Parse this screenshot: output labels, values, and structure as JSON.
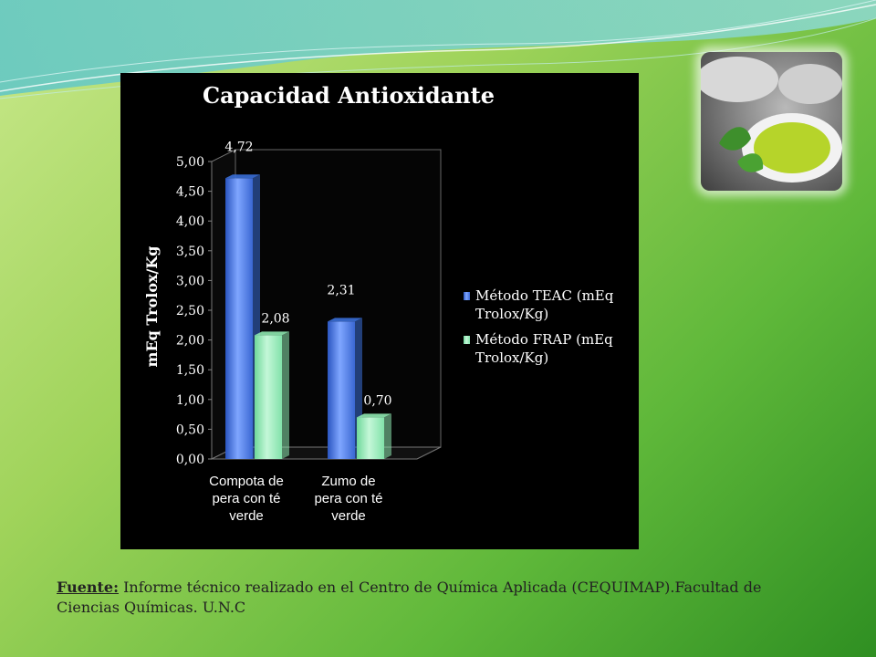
{
  "chart_data": {
    "type": "bar",
    "title": "Capacidad Antioxidante",
    "xlabel": "",
    "ylabel": "mEq Trolox/Kg",
    "ylim": [
      0,
      5
    ],
    "yticks": [
      "0,00",
      "0,50",
      "1,00",
      "1,50",
      "2,00",
      "2,50",
      "3,00",
      "3,50",
      "4,00",
      "4,50",
      "5,00"
    ],
    "categories": [
      "Compota de pera con té verde",
      "Zumo de pera con té verde"
    ],
    "category_lines": [
      [
        "Compota de",
        "pera con té",
        "verde"
      ],
      [
        "Zumo de",
        "pera con té",
        "verde"
      ]
    ],
    "series": [
      {
        "name": "Método TEAC (mEq Trolox/Kg)",
        "legend_lines": [
          "Método TEAC (mEq",
          "Trolox/Kg)"
        ],
        "values": [
          4.72,
          2.31
        ],
        "labels": [
          "4,72",
          "2,31"
        ],
        "color": "#3a6fd8"
      },
      {
        "name": "Método FRAP (mEq Trolox/Kg)",
        "legend_lines": [
          "Método FRAP (mEq",
          "Trolox/Kg)"
        ],
        "values": [
          2.08,
          0.7
        ],
        "labels": [
          "2,08",
          "0,70"
        ],
        "color": "#8ee8b0"
      }
    ],
    "legend_position": "right",
    "grid": false,
    "style": "3d-cylinder-bars"
  },
  "footer": {
    "source_label": "Fuente:",
    "source_text": " Informe técnico realizado en el Centro de Química Aplicada (CEQUIMAP).Facultad de Ciencias Químicas. U.N.C"
  },
  "colors": {
    "panel": "#000000",
    "axis": "#888888",
    "text": "#ffffff"
  }
}
